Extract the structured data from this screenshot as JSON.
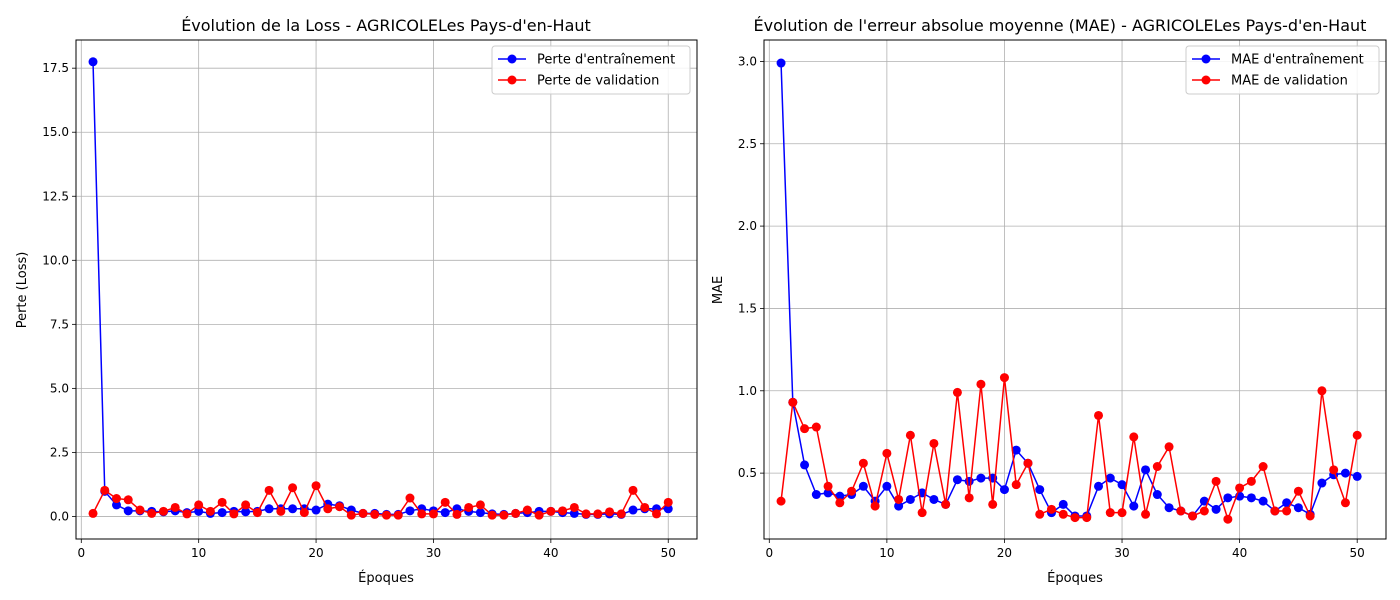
{
  "colors": {
    "train": "#0000ff",
    "validation": "#ff0000",
    "grid": "#b0b0b0",
    "axis": "#000000",
    "legend_border": "#cccccc"
  },
  "chart_data": [
    {
      "type": "line",
      "title": "Évolution de la Loss - AGRICOLELes Pays-d'en-Haut",
      "xlabel": "Époques",
      "ylabel": "Perte (Loss)",
      "xlim": [
        -0.45,
        52.45
      ],
      "ylim": [
        -0.88,
        18.6
      ],
      "xticks": [
        0,
        10,
        20,
        30,
        40,
        50
      ],
      "xtick_labels": [
        "0",
        "10",
        "20",
        "30",
        "40",
        "50"
      ],
      "yticks": [
        0,
        2.5,
        5,
        7.5,
        10,
        12.5,
        15,
        17.5
      ],
      "ytick_labels": [
        "0.0",
        "2.5",
        "5.0",
        "7.5",
        "10.0",
        "12.5",
        "15.0",
        "17.5"
      ],
      "grid": true,
      "legend": "top-right",
      "x": [
        1,
        2,
        3,
        4,
        5,
        6,
        7,
        8,
        9,
        10,
        11,
        12,
        13,
        14,
        15,
        16,
        17,
        18,
        19,
        20,
        21,
        22,
        23,
        24,
        25,
        26,
        27,
        28,
        29,
        30,
        31,
        32,
        33,
        34,
        35,
        36,
        37,
        38,
        39,
        40,
        41,
        42,
        43,
        44,
        45,
        46,
        47,
        48,
        49,
        50
      ],
      "series": [
        {
          "name": "Perte d'entraînement",
          "color": "#0000ff",
          "values": [
            17.75,
            0.98,
            0.45,
            0.22,
            0.22,
            0.2,
            0.18,
            0.22,
            0.15,
            0.2,
            0.12,
            0.15,
            0.2,
            0.18,
            0.2,
            0.3,
            0.3,
            0.3,
            0.3,
            0.25,
            0.48,
            0.42,
            0.25,
            0.12,
            0.12,
            0.08,
            0.08,
            0.22,
            0.3,
            0.22,
            0.15,
            0.3,
            0.2,
            0.15,
            0.1,
            0.08,
            0.12,
            0.15,
            0.2,
            0.2,
            0.15,
            0.12,
            0.08,
            0.08,
            0.1,
            0.08,
            0.25,
            0.3,
            0.3,
            0.3
          ]
        },
        {
          "name": "Perte de validation",
          "color": "#ff0000",
          "values": [
            0.12,
            1.02,
            0.7,
            0.65,
            0.25,
            0.12,
            0.2,
            0.35,
            0.1,
            0.45,
            0.2,
            0.55,
            0.1,
            0.45,
            0.15,
            1.02,
            0.2,
            1.12,
            0.15,
            1.2,
            0.3,
            0.38,
            0.05,
            0.12,
            0.08,
            0.05,
            0.05,
            0.72,
            0.1,
            0.1,
            0.55,
            0.08,
            0.35,
            0.45,
            0.05,
            0.05,
            0.12,
            0.25,
            0.05,
            0.2,
            0.22,
            0.35,
            0.1,
            0.1,
            0.18,
            0.1,
            1.02,
            0.35,
            0.1,
            0.55
          ]
        }
      ]
    },
    {
      "type": "line",
      "title": "Évolution de l'erreur absolue moyenne (MAE) - AGRICOLELes Pays-d'en-Haut",
      "xlabel": "Époques",
      "ylabel": "MAE",
      "xlim": [
        -0.45,
        52.45
      ],
      "ylim": [
        0.1,
        3.13
      ],
      "xticks": [
        0,
        10,
        20,
        30,
        40,
        50
      ],
      "xtick_labels": [
        "0",
        "10",
        "20",
        "30",
        "40",
        "50"
      ],
      "yticks": [
        0.5,
        1.0,
        1.5,
        2.0,
        2.5,
        3.0
      ],
      "ytick_labels": [
        "0.5",
        "1.0",
        "1.5",
        "2.0",
        "2.5",
        "3.0"
      ],
      "grid": true,
      "legend": "top-right",
      "x": [
        1,
        2,
        3,
        4,
        5,
        6,
        7,
        8,
        9,
        10,
        11,
        12,
        13,
        14,
        15,
        16,
        17,
        18,
        19,
        20,
        21,
        22,
        23,
        24,
        25,
        26,
        27,
        28,
        29,
        30,
        31,
        32,
        33,
        34,
        35,
        36,
        37,
        38,
        39,
        40,
        41,
        42,
        43,
        44,
        45,
        46,
        47,
        48,
        49,
        50
      ],
      "series": [
        {
          "name": "MAE d'entraînement",
          "color": "#0000ff",
          "values": [
            2.99,
            0.93,
            0.55,
            0.37,
            0.38,
            0.36,
            0.37,
            0.42,
            0.33,
            0.42,
            0.3,
            0.34,
            0.38,
            0.34,
            0.31,
            0.46,
            0.45,
            0.47,
            0.47,
            0.4,
            0.64,
            0.56,
            0.4,
            0.26,
            0.31,
            0.24,
            0.24,
            0.42,
            0.47,
            0.43,
            0.3,
            0.52,
            0.37,
            0.29,
            0.27,
            0.24,
            0.33,
            0.28,
            0.35,
            0.36,
            0.35,
            0.33,
            0.27,
            0.32,
            0.29,
            0.25,
            0.44,
            0.49,
            0.5,
            0.48
          ]
        },
        {
          "name": "MAE de validation",
          "color": "#ff0000",
          "values": [
            0.33,
            0.93,
            0.77,
            0.78,
            0.42,
            0.32,
            0.39,
            0.56,
            0.3,
            0.62,
            0.34,
            0.73,
            0.26,
            0.68,
            0.31,
            0.99,
            0.35,
            1.04,
            0.31,
            1.08,
            0.43,
            0.56,
            0.25,
            0.28,
            0.25,
            0.23,
            0.23,
            0.85,
            0.26,
            0.26,
            0.72,
            0.25,
            0.54,
            0.66,
            0.27,
            0.24,
            0.27,
            0.45,
            0.22,
            0.41,
            0.45,
            0.54,
            0.27,
            0.27,
            0.39,
            0.24,
            1.0,
            0.52,
            0.32,
            0.73
          ]
        }
      ]
    }
  ]
}
